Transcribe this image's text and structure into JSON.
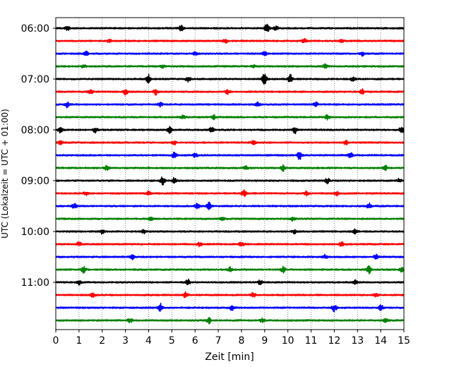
{
  "chart_data": {
    "type": "line",
    "title": "",
    "xlabel": "Zeit  [min]",
    "ylabel": "UTC (Lokalzeit = UTC + 01:00)",
    "xlim": [
      0,
      15
    ],
    "x_ticks": [
      "0",
      "1",
      "2",
      "3",
      "4",
      "5",
      "6",
      "7",
      "8",
      "9",
      "10",
      "11",
      "12",
      "13",
      "14",
      "15"
    ],
    "y_ticks": [
      "06:00",
      "07:00",
      "08:00",
      "09:00",
      "10:00",
      "11:00"
    ],
    "trace_colors": [
      "#000000",
      "#ff0000",
      "#0000ff",
      "#008000"
    ],
    "traces": [
      {
        "start": "06:00",
        "color": "#000000",
        "events": [
          [
            0.5,
            3
          ],
          [
            5.4,
            4
          ],
          [
            9.1,
            7
          ],
          [
            9.5,
            3
          ]
        ]
      },
      {
        "start": "06:15",
        "color": "#ff0000",
        "events": [
          [
            2.3,
            2
          ],
          [
            7.3,
            3
          ],
          [
            10.7,
            3
          ],
          [
            12.3,
            3
          ]
        ]
      },
      {
        "start": "06:30",
        "color": "#0000ff",
        "events": [
          [
            1.3,
            3
          ],
          [
            6.0,
            2
          ],
          [
            9.0,
            3
          ],
          [
            13.2,
            3
          ]
        ]
      },
      {
        "start": "06:45",
        "color": "#008000",
        "events": [
          [
            1.2,
            2
          ],
          [
            4.6,
            2
          ],
          [
            8.5,
            2
          ],
          [
            11.6,
            3
          ]
        ]
      },
      {
        "start": "07:00",
        "color": "#000000",
        "events": [
          [
            4.0,
            6
          ],
          [
            5.7,
            4
          ],
          [
            9.0,
            10
          ],
          [
            10.1,
            6
          ],
          [
            12.8,
            3
          ]
        ]
      },
      {
        "start": "07:15",
        "color": "#ff0000",
        "events": [
          [
            1.5,
            3
          ],
          [
            3.0,
            4
          ],
          [
            4.3,
            4
          ],
          [
            7.4,
            3
          ],
          [
            13.2,
            4
          ]
        ]
      },
      {
        "start": "07:30",
        "color": "#0000ff",
        "events": [
          [
            0.5,
            4
          ],
          [
            4.5,
            3
          ],
          [
            8.7,
            3
          ],
          [
            11.2,
            3
          ]
        ]
      },
      {
        "start": "07:45",
        "color": "#008000",
        "events": [
          [
            5.5,
            3
          ],
          [
            6.8,
            3
          ],
          [
            11.7,
            3
          ]
        ]
      },
      {
        "start": "08:00",
        "color": "#000000",
        "events": [
          [
            0.2,
            4
          ],
          [
            1.7,
            4
          ],
          [
            4.9,
            4
          ],
          [
            6.7,
            5
          ],
          [
            10.3,
            5
          ],
          [
            14.9,
            5
          ]
        ]
      },
      {
        "start": "08:15",
        "color": "#ff0000",
        "events": [
          [
            0.2,
            3
          ],
          [
            5.1,
            3
          ],
          [
            8.5,
            3
          ],
          [
            12.5,
            3
          ]
        ]
      },
      {
        "start": "08:30",
        "color": "#0000ff",
        "events": [
          [
            5.1,
            4
          ],
          [
            6.0,
            3
          ],
          [
            10.5,
            6
          ],
          [
            12.7,
            4
          ]
        ]
      },
      {
        "start": "08:45",
        "color": "#008000",
        "events": [
          [
            2.2,
            4
          ],
          [
            8.2,
            3
          ],
          [
            9.8,
            4
          ],
          [
            14.2,
            3
          ]
        ]
      },
      {
        "start": "09:00",
        "color": "#000000",
        "events": [
          [
            4.6,
            6
          ],
          [
            5.1,
            4
          ],
          [
            11.7,
            4
          ],
          [
            14.8,
            3
          ]
        ]
      },
      {
        "start": "09:15",
        "color": "#ff0000",
        "events": [
          [
            1.3,
            3
          ],
          [
            4.0,
            3
          ],
          [
            8.1,
            5
          ],
          [
            10.8,
            3
          ],
          [
            12.1,
            3
          ]
        ]
      },
      {
        "start": "09:30",
        "color": "#0000ff",
        "events": [
          [
            0.8,
            4
          ],
          [
            6.1,
            5
          ],
          [
            6.6,
            5
          ],
          [
            13.5,
            4
          ]
        ]
      },
      {
        "start": "09:45",
        "color": "#008000",
        "events": [
          [
            4.1,
            2
          ],
          [
            7.2,
            3
          ],
          [
            10.2,
            3
          ]
        ]
      },
      {
        "start": "10:00",
        "color": "#000000",
        "events": [
          [
            2.0,
            3
          ],
          [
            3.8,
            3
          ],
          [
            10.3,
            3
          ],
          [
            12.9,
            3
          ]
        ]
      },
      {
        "start": "10:15",
        "color": "#ff0000",
        "events": [
          [
            1.0,
            3
          ],
          [
            6.2,
            3
          ],
          [
            8.0,
            4
          ],
          [
            12.3,
            3
          ]
        ]
      },
      {
        "start": "10:30",
        "color": "#0000ff",
        "events": [
          [
            3.3,
            3
          ],
          [
            11.6,
            3
          ],
          [
            13.8,
            4
          ]
        ]
      },
      {
        "start": "10:45",
        "color": "#008000",
        "events": [
          [
            1.2,
            5
          ],
          [
            7.5,
            4
          ],
          [
            9.8,
            4
          ],
          [
            13.5,
            5
          ],
          [
            14.9,
            3
          ]
        ]
      },
      {
        "start": "11:00",
        "color": "#000000",
        "events": [
          [
            1.0,
            3
          ],
          [
            5.7,
            4
          ],
          [
            8.8,
            3
          ],
          [
            12.9,
            3
          ]
        ]
      },
      {
        "start": "11:15",
        "color": "#ff0000",
        "events": [
          [
            1.6,
            3
          ],
          [
            5.6,
            4
          ],
          [
            8.5,
            4
          ],
          [
            13.8,
            3
          ]
        ]
      },
      {
        "start": "11:30",
        "color": "#0000ff",
        "events": [
          [
            4.5,
            6
          ],
          [
            7.6,
            4
          ],
          [
            12.0,
            5
          ],
          [
            14.0,
            5
          ]
        ]
      },
      {
        "start": "11:45",
        "color": "#008000",
        "events": [
          [
            3.2,
            3
          ],
          [
            6.6,
            4
          ],
          [
            8.9,
            3
          ],
          [
            14.2,
            3
          ]
        ]
      }
    ],
    "grid": "x-dotted",
    "legend": "none"
  }
}
